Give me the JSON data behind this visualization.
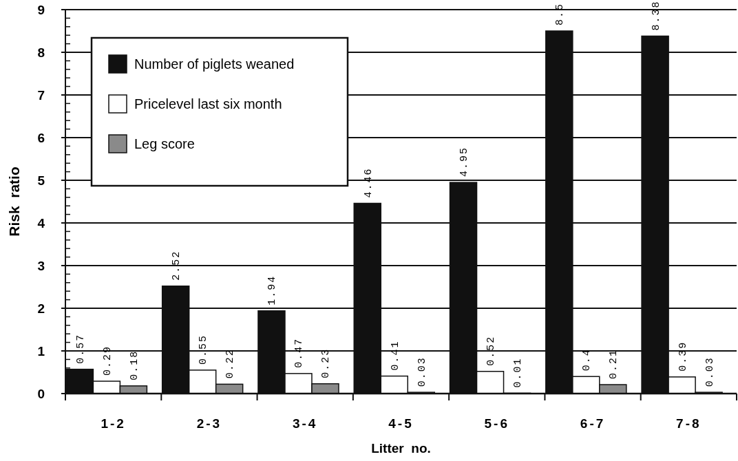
{
  "chart_data": {
    "type": "bar",
    "xlabel": "Litter  no.",
    "ylabel": "Risk  ratio",
    "categories": [
      "1-2",
      "2-3",
      "3-4",
      "4-5",
      "5-6",
      "6-7",
      "7-8"
    ],
    "series": [
      {
        "name": "Number of piglets weaned",
        "color": "#111111",
        "values": [
          0.57,
          2.52,
          1.94,
          4.46,
          4.95,
          8.5,
          8.38
        ]
      },
      {
        "name": "Pricelevel last six month",
        "color": "#ffffff",
        "values": [
          0.29,
          0.55,
          0.47,
          0.41,
          0.52,
          0.4,
          0.39
        ]
      },
      {
        "name": "Leg score",
        "color": "#8a8a8a",
        "values": [
          0.18,
          0.22,
          0.23,
          0.03,
          0.01,
          0.21,
          0.03
        ]
      }
    ],
    "ylim": [
      0,
      9
    ],
    "yticks": [
      0,
      1,
      2,
      3,
      4,
      5,
      6,
      7,
      8,
      9
    ],
    "grid": "y",
    "legend": "top left",
    "data_labels": true
  }
}
